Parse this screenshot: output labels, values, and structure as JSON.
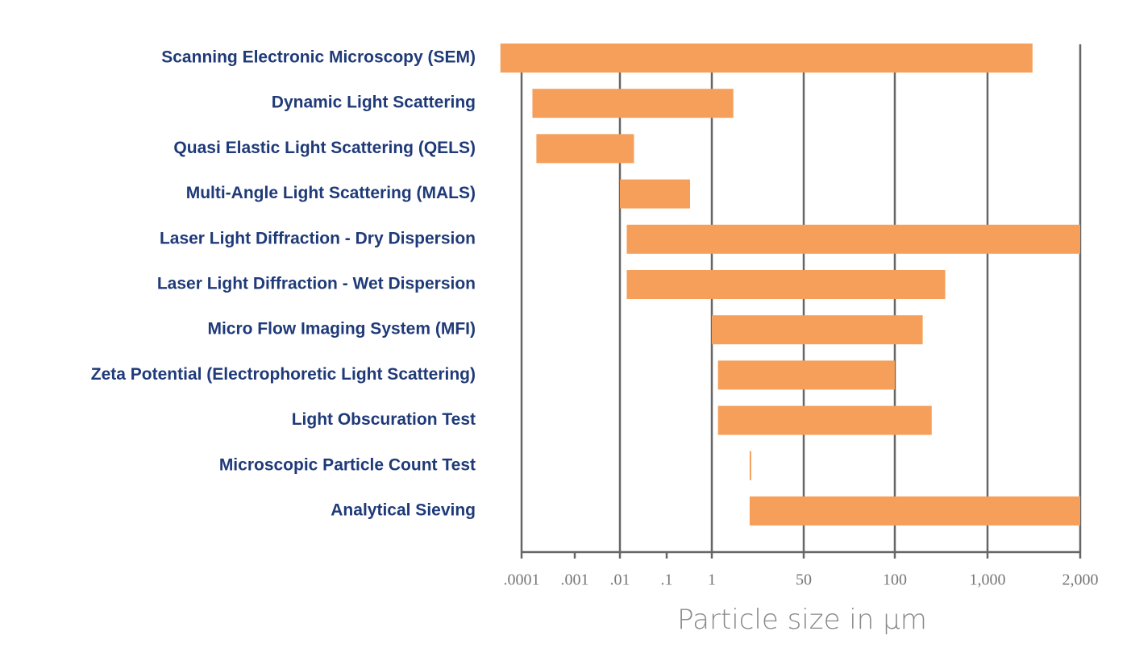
{
  "chart_data": {
    "type": "range-bar",
    "x_label": "Particle size in µm",
    "categories": [
      "Scanning Electronic Microscopy (SEM)",
      "Dynamic Light Scattering",
      "Quasi Elastic Light Scattering (QELS)",
      "Multi-Angle Light Scattering (MALS)",
      "Laser Light Diffraction - Dry Dispersion",
      "Laser Light Diffraction - Wet Dispersion",
      "Micro Flow Imaging System (MFI)",
      "Zeta Potential (Electrophoretic Light Scattering)",
      "Light Obscuration Test",
      "Microscopic Particle Count Test",
      "Analytical Sieving"
    ],
    "low": [
      4e-05,
      0.00016,
      0.00019,
      0.01,
      0.014,
      0.014,
      1,
      1.3,
      1.3,
      5,
      5
    ],
    "high": [
      1400,
      2.5,
      0.02,
      0.33,
      2000,
      350,
      200,
      100,
      250,
      5,
      2000
    ],
    "color": "#f59f5a",
    "xlim": [
      0.0001,
      2000
    ],
    "xticks": [
      {
        "value": 0.0001,
        "label": ".0001"
      },
      {
        "value": 0.001,
        "label": ".001"
      },
      {
        "value": 0.01,
        "label": ".01"
      },
      {
        "value": 0.1,
        "label": ".1"
      },
      1,
      50,
      100,
      {
        "value": 1000,
        "label": "1,000"
      },
      {
        "value": 2000,
        "label": "2,000"
      }
    ],
    "grid": true
  }
}
